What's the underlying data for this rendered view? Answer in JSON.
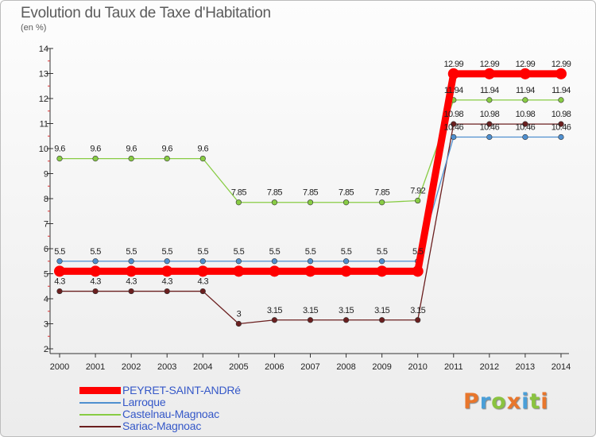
{
  "title": "Evolution du Taux de Taxe d'Habitation",
  "subtitle": "(en %)",
  "logo": {
    "text": "Proxiti",
    "colors": [
      "#e8762c",
      "#4b9fd8",
      "#8ac340",
      "#e8762c",
      "#4b9fd8",
      "#8ac340",
      "#e8762c"
    ]
  },
  "chart_data": {
    "type": "line",
    "x": [
      "2000",
      "2001",
      "2002",
      "2003",
      "2004",
      "2005",
      "2006",
      "2007",
      "2008",
      "2009",
      "2010",
      "2011",
      "2012",
      "2013",
      "2014"
    ],
    "ylim": [
      2,
      14
    ],
    "yticks": [
      2,
      3,
      4,
      5,
      6,
      7,
      8,
      9,
      10,
      11,
      12,
      13,
      14
    ],
    "grid": false,
    "legend": "bottom-left",
    "series": [
      {
        "name": "PEYRET-SAINT-ANDRé",
        "color": "#ff0000",
        "values": [
          5.1,
          5.1,
          5.1,
          5.1,
          5.1,
          5.1,
          5.1,
          5.1,
          5.1,
          5.1,
          5.1,
          12.99,
          12.99,
          12.99,
          12.99
        ],
        "labels": [
          "",
          "",
          "",
          "",
          "",
          "",
          "",
          "",
          "",
          "",
          "",
          "12.99",
          "12.99",
          "12.99",
          "12.99"
        ]
      },
      {
        "name": "Larroque",
        "color": "#4f8fcf",
        "values": [
          5.5,
          5.5,
          5.5,
          5.5,
          5.5,
          5.5,
          5.5,
          5.5,
          5.5,
          5.5,
          5.5,
          10.46,
          10.46,
          10.46,
          10.46
        ],
        "labels": [
          "5.5",
          "5.5",
          "5.5",
          "5.5",
          "5.5",
          "5.5",
          "5.5",
          "5.5",
          "5.5",
          "5.5",
          "5.5",
          "10.46",
          "10.46",
          "10.46",
          "10.46"
        ]
      },
      {
        "name": "Castelnau-Magnoac",
        "color": "#88cc44",
        "values": [
          9.6,
          9.6,
          9.6,
          9.6,
          9.6,
          7.85,
          7.85,
          7.85,
          7.85,
          7.85,
          7.92,
          11.94,
          11.94,
          11.94,
          11.94
        ],
        "labels": [
          "9.6",
          "9.6",
          "9.6",
          "9.6",
          "9.6",
          "7.85",
          "7.85",
          "7.85",
          "7.85",
          "7.85",
          "7.92",
          "11.94",
          "11.94",
          "11.94",
          "11.94"
        ]
      },
      {
        "name": "Sariac-Magnoac",
        "color": "#6b1f1f",
        "values": [
          4.3,
          4.3,
          4.3,
          4.3,
          4.3,
          3,
          3.15,
          3.15,
          3.15,
          3.15,
          3.15,
          10.98,
          10.98,
          10.98,
          10.98
        ],
        "labels": [
          "4.3",
          "4.3",
          "4.3",
          "4.3",
          "4.3",
          "3",
          "3.15",
          "3.15",
          "3.15",
          "3.15",
          "3.15",
          "10.98",
          "10.98",
          "10.98",
          "10.98"
        ]
      }
    ]
  }
}
